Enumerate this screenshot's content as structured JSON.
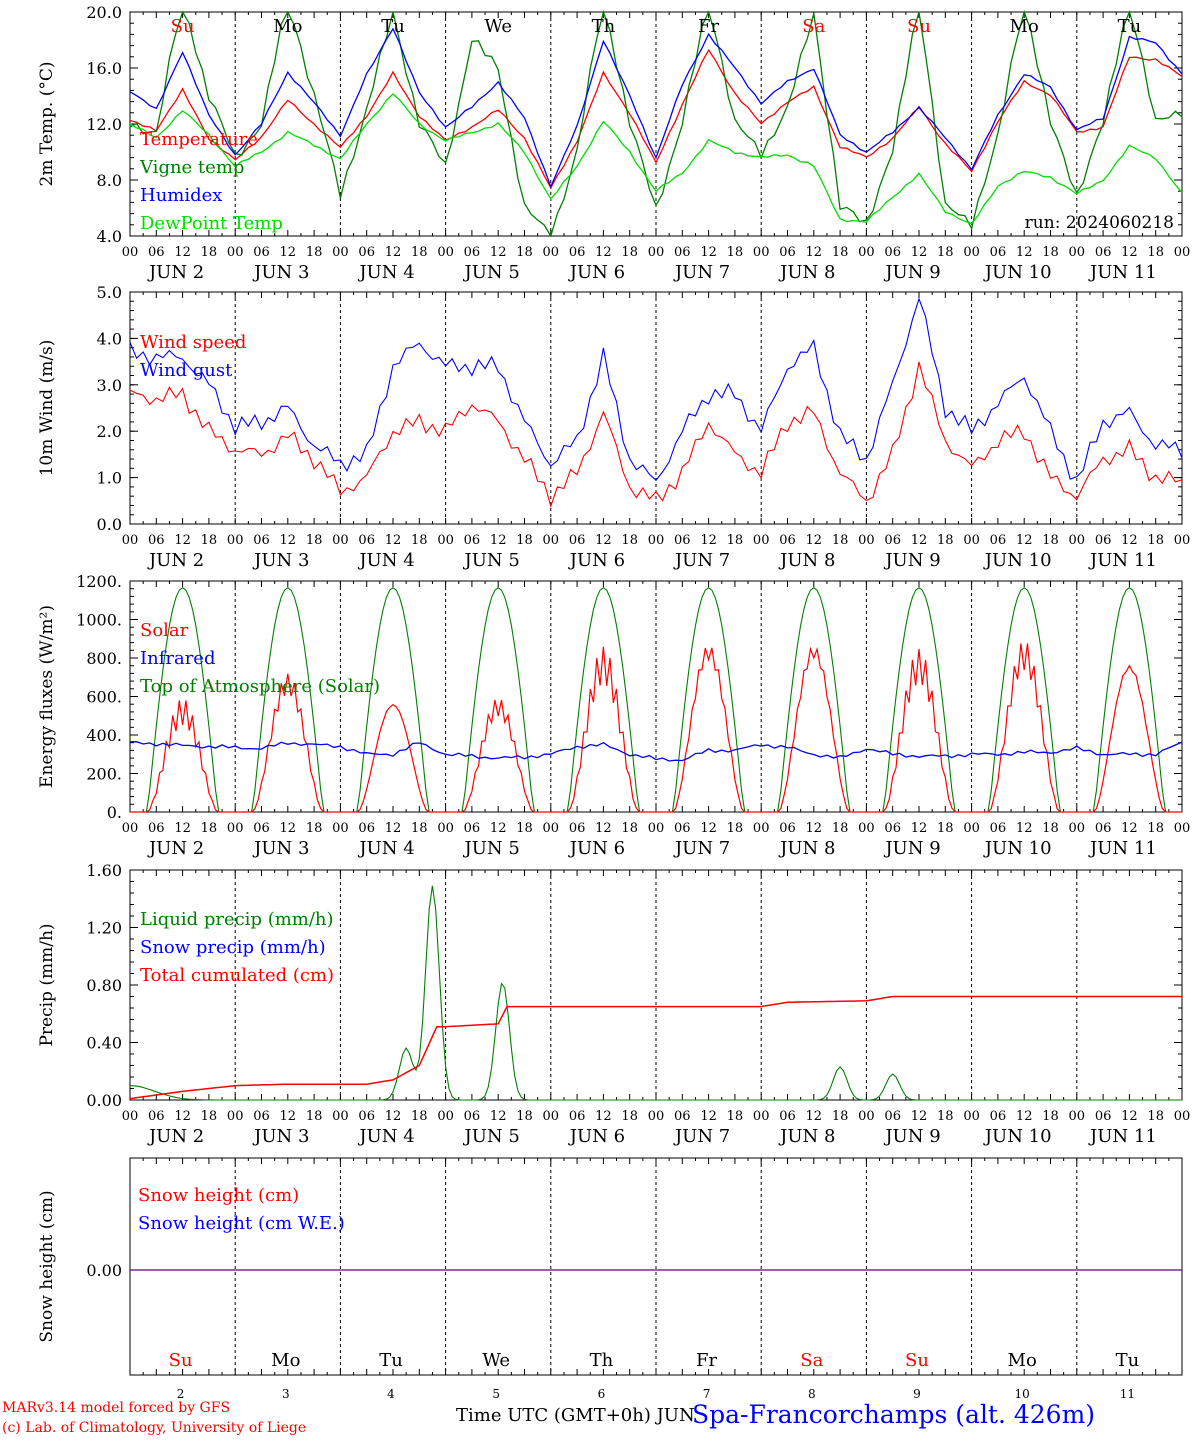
{
  "footer": {
    "model_line": "MARv3.14 model forced by GFS",
    "copyright_line": "(c) Lab. of Climatology, University of Liege",
    "time_label": "Time UTC (GMT+0h) JUN",
    "station": "Spa-Francorchamps (alt. 426m)"
  },
  "axis": {
    "hour_ticks": [
      "00",
      "06",
      "12",
      "18"
    ],
    "final_tick": "00",
    "date_labels": [
      "JUN  2",
      "JUN  3",
      "JUN  4",
      "JUN  5",
      "JUN  6",
      "JUN  7",
      "JUN  8",
      "JUN  9",
      "JUN 10",
      "JUN 11"
    ],
    "weekdays": [
      "Su",
      "Mo",
      "Tu",
      "We",
      "Th",
      "Fr",
      "Sa",
      "Su",
      "Mo",
      "Tu"
    ],
    "weekend_flags": [
      true,
      false,
      false,
      false,
      false,
      false,
      true,
      true,
      false,
      false
    ],
    "day_numbers": [
      "2",
      "3",
      "4",
      "5",
      "6",
      "7",
      "8",
      "9",
      "10",
      "11"
    ]
  },
  "colors": {
    "red": "#ff0000",
    "green": "#008000",
    "lightgreen": "#00dd00",
    "blue": "#0000ff",
    "purple": "#7a2d8a",
    "axis": "#000000"
  },
  "chart_data": [
    {
      "type": "line",
      "ylabel": "2m Temp. (°C)",
      "ylim": [
        4.0,
        20.0
      ],
      "yticks": [
        "4.0",
        "8.0",
        "12.0",
        "16.0",
        "20.0"
      ],
      "annotation": "run: 2024060218",
      "x": [
        0,
        6,
        12,
        18,
        24,
        30,
        36,
        42,
        48,
        54,
        60,
        66,
        72,
        78,
        84,
        90,
        96,
        102,
        108,
        114,
        120,
        126,
        132,
        138,
        144,
        150,
        156,
        162,
        168,
        174,
        180,
        186,
        192,
        198,
        204,
        210,
        216,
        222,
        228,
        234,
        240
      ],
      "series": [
        {
          "name": "Temperature",
          "color": "red",
          "values": [
            12.2,
            11.6,
            14.4,
            11.0,
            9.4,
            11.1,
            13.7,
            12.0,
            10.3,
            12.6,
            15.6,
            12.6,
            10.8,
            11.8,
            13.0,
            11.0,
            7.4,
            10.8,
            15.6,
            12.8,
            9.2,
            13.4,
            17.3,
            14.2,
            12.0,
            13.6,
            14.6,
            10.4,
            9.6,
            11.0,
            13.2,
            10.6,
            8.6,
            12.2,
            15.0,
            14.1,
            11.4,
            11.8,
            16.8,
            16.6,
            15.4
          ]
        },
        {
          "name": "Vigne temp",
          "color": "green",
          "values": [
            12.0,
            11.4,
            21.0,
            14.0,
            9.6,
            12.0,
            21.0,
            14.0,
            7.0,
            13.0,
            20.0,
            12.0,
            9.0,
            18.0,
            16.0,
            6.0,
            4.0,
            10.0,
            21.0,
            12.0,
            6.0,
            12.0,
            21.0,
            12.0,
            10.0,
            13.0,
            20.0,
            6.0,
            5.0,
            10.0,
            21.0,
            6.0,
            5.0,
            11.0,
            21.0,
            12.0,
            7.0,
            12.0,
            21.0,
            12.0,
            13.0
          ]
        },
        {
          "name": "Humidex",
          "color": "blue",
          "values": [
            14.4,
            13.0,
            17.2,
            12.6,
            9.8,
            12.0,
            15.7,
            13.5,
            11.2,
            15.5,
            18.9,
            14.2,
            11.8,
            13.2,
            15.0,
            12.4,
            7.6,
            11.8,
            18.0,
            14.0,
            9.6,
            14.8,
            18.4,
            16.0,
            13.5,
            15.0,
            16.0,
            11.2,
            10.0,
            11.4,
            13.2,
            11.0,
            8.8,
            12.6,
            15.6,
            14.6,
            11.6,
            12.4,
            18.2,
            17.8,
            15.6
          ]
        },
        {
          "name": "DewPoint Temp",
          "color": "lightgreen",
          "values": [
            12.0,
            11.0,
            13.0,
            11.2,
            9.0,
            10.0,
            11.4,
            10.5,
            9.5,
            12.0,
            14.2,
            12.0,
            10.8,
            11.4,
            12.0,
            10.0,
            6.6,
            9.0,
            12.2,
            10.0,
            7.2,
            8.5,
            10.8,
            10.0,
            9.6,
            9.8,
            9.0,
            5.2,
            5.0,
            6.8,
            8.4,
            5.8,
            4.8,
            7.6,
            8.6,
            8.2,
            7.0,
            8.0,
            10.4,
            9.6,
            7.0
          ]
        }
      ]
    },
    {
      "type": "line",
      "ylabel": "10m Wind (m/s)",
      "ylim": [
        0.0,
        5.0
      ],
      "yticks": [
        "0.0",
        "1.0",
        "2.0",
        "3.0",
        "4.0",
        "5.0"
      ],
      "x": [
        0,
        6,
        12,
        18,
        24,
        30,
        36,
        42,
        48,
        54,
        60,
        66,
        72,
        78,
        84,
        90,
        96,
        102,
        108,
        114,
        120,
        126,
        132,
        138,
        144,
        150,
        156,
        162,
        168,
        174,
        180,
        186,
        192,
        198,
        204,
        210,
        216,
        222,
        228,
        234,
        240
      ],
      "series": [
        {
          "name": "Wind speed",
          "color": "red",
          "values": [
            2.8,
            2.7,
            2.8,
            2.0,
            1.6,
            1.5,
            1.9,
            1.4,
            0.7,
            1.0,
            2.0,
            2.2,
            2.0,
            2.6,
            2.2,
            1.4,
            0.6,
            1.1,
            2.4,
            0.8,
            0.5,
            1.1,
            2.2,
            1.5,
            1.1,
            2.2,
            2.4,
            1.1,
            0.5,
            1.5,
            3.4,
            1.8,
            1.2,
            1.8,
            2.0,
            1.0,
            0.6,
            1.4,
            1.6,
            1.0,
            0.9
          ]
        },
        {
          "name": "Wind gust",
          "color": "blue",
          "values": [
            3.7,
            3.6,
            3.6,
            3.0,
            2.1,
            2.2,
            2.5,
            1.7,
            1.3,
            1.5,
            3.4,
            3.9,
            3.4,
            3.4,
            3.4,
            2.2,
            1.3,
            1.8,
            3.6,
            1.4,
            0.9,
            2.0,
            2.8,
            2.8,
            2.0,
            3.4,
            3.8,
            1.9,
            1.4,
            3.0,
            4.9,
            2.5,
            2.0,
            2.6,
            3.2,
            2.0,
            0.9,
            2.2,
            2.4,
            1.7,
            1.6
          ]
        }
      ]
    },
    {
      "type": "line",
      "ylabel": "Energy fluxes (W/m²)",
      "ylim": [
        0,
        1200
      ],
      "yticks": [
        "0.",
        "200.",
        "400.",
        "600.",
        "800.",
        "1000.",
        "1200."
      ],
      "series": [
        {
          "name": "Solar",
          "color": "red",
          "daily_peaks": [
            590,
            730,
            600,
            600,
            860,
            900,
            900,
            850,
            900,
            810
          ]
        },
        {
          "name": "Infrared",
          "color": "blue",
          "values": [
            360,
            355,
            345,
            340,
            335,
            330,
            360,
            350,
            340,
            300,
            300,
            360,
            300,
            290,
            280,
            285,
            300,
            340,
            350,
            300,
            275,
            270,
            320,
            320,
            350,
            335,
            300,
            280,
            330,
            300,
            290,
            290,
            300,
            300,
            310,
            310,
            330,
            300,
            300,
            300,
            360
          ]
        },
        {
          "name": "Top of Atmosphere (Solar)",
          "color": "green",
          "daily_peaks": [
            1165,
            1165,
            1165,
            1165,
            1165,
            1165,
            1165,
            1165,
            1165,
            1165
          ]
        }
      ]
    },
    {
      "type": "line",
      "ylabel": "Precip (mm/h)",
      "ylim": [
        0.0,
        1.6
      ],
      "yticks": [
        "0.00",
        "0.40",
        "0.80",
        "1.20",
        "1.60"
      ],
      "series": [
        {
          "name": "Liquid precip (mm/h)",
          "color": "green",
          "events": [
            {
              "t": 0,
              "v": 0.1
            },
            {
              "t": 63,
              "v": 0.36
            },
            {
              "t": 69,
              "v": 1.49
            },
            {
              "t": 85,
              "v": 0.82
            },
            {
              "t": 162,
              "v": 0.23
            },
            {
              "t": 174,
              "v": 0.18
            }
          ]
        },
        {
          "name": "Snow precip (mm/h)",
          "color": "blue",
          "values": []
        },
        {
          "name": "Total cumulated (cm)",
          "color": "red",
          "x": [
            0,
            12,
            24,
            36,
            48,
            54,
            60,
            66,
            70,
            72,
            84,
            86,
            90,
            96,
            120,
            144,
            150,
            168,
            174,
            240
          ],
          "values": [
            0.01,
            0.06,
            0.1,
            0.11,
            0.11,
            0.11,
            0.14,
            0.24,
            0.51,
            0.51,
            0.53,
            0.65,
            0.65,
            0.65,
            0.65,
            0.65,
            0.68,
            0.69,
            0.72,
            0.72
          ]
        }
      ]
    },
    {
      "type": "line",
      "ylabel": "Snow height (cm)",
      "yticks": [
        "0.00"
      ],
      "series": [
        {
          "name": "Snow height (cm)",
          "color": "red",
          "values": [
            0,
            0
          ]
        },
        {
          "name": "Snow height (cm W.E.)",
          "color": "blue",
          "values": [
            0,
            0
          ]
        }
      ]
    }
  ]
}
